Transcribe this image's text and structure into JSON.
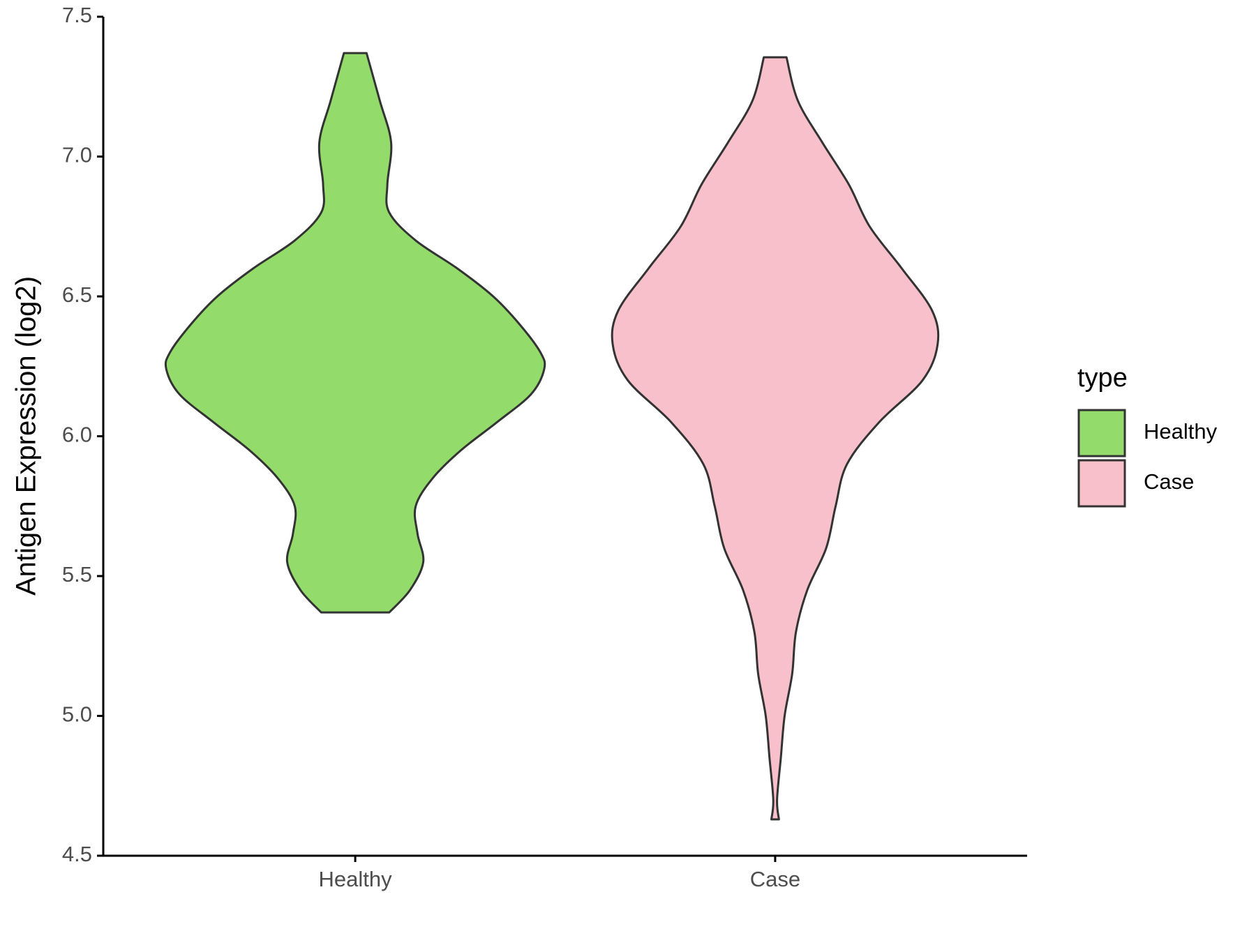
{
  "chart_data": {
    "type": "violin",
    "ylabel": "Antigen Expression (log2)",
    "categories": [
      "Healthy",
      "Case"
    ],
    "legend_title": "type",
    "series": [
      {
        "name": "Healthy",
        "color": "#93DB6B",
        "y": [
          7.37,
          7.2,
          7.05,
          6.9,
          6.8,
          6.7,
          6.6,
          6.5,
          6.4,
          6.3,
          6.24,
          6.15,
          6.05,
          5.95,
          5.85,
          5.75,
          5.65,
          5.55,
          5.45,
          5.37
        ],
        "density": [
          0.06,
          0.13,
          0.19,
          0.17,
          0.18,
          0.32,
          0.54,
          0.73,
          0.87,
          0.98,
          1.0,
          0.93,
          0.75,
          0.56,
          0.41,
          0.32,
          0.33,
          0.36,
          0.29,
          0.18
        ]
      },
      {
        "name": "Case",
        "color": "#F7C0CA",
        "y": [
          7.355,
          7.2,
          7.05,
          6.9,
          6.75,
          6.6,
          6.45,
          6.33,
          6.2,
          6.05,
          5.9,
          5.75,
          5.6,
          5.45,
          5.3,
          5.15,
          5.0,
          4.85,
          4.7,
          4.63
        ],
        "density": [
          0.06,
          0.12,
          0.25,
          0.39,
          0.5,
          0.67,
          0.83,
          0.86,
          0.78,
          0.55,
          0.38,
          0.32,
          0.27,
          0.17,
          0.11,
          0.09,
          0.05,
          0.03,
          0.01,
          0.02
        ]
      }
    ],
    "ylim": [
      4.5,
      7.5
    ],
    "yticks": [
      {
        "value": 4.5,
        "label": "4.5"
      },
      {
        "value": 5,
        "label": "5.0"
      },
      {
        "value": 5.5,
        "label": "5.5"
      },
      {
        "value": 6,
        "label": "6.0"
      },
      {
        "value": 6.5,
        "label": "6.5"
      },
      {
        "value": 7,
        "label": "7.0"
      },
      {
        "value": 7.5,
        "label": "7.5"
      }
    ],
    "grid": false
  }
}
